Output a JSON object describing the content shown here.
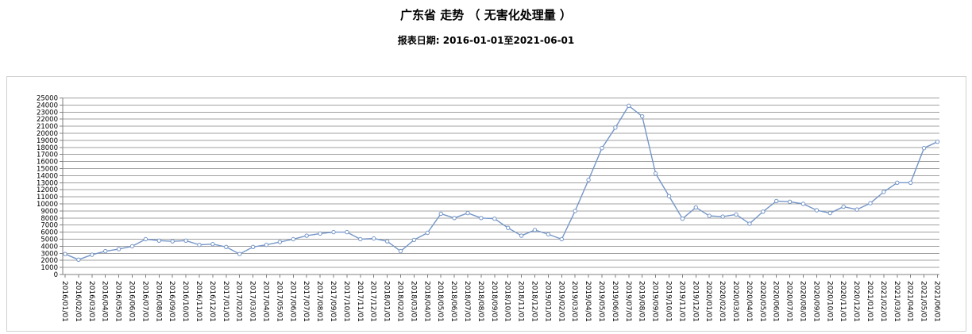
{
  "header": {
    "title": "广东省 走势 （ 无害化处理量 ）",
    "subtitle": "报表日期: 2016-01-01至2021-06-01"
  },
  "chart_data": {
    "type": "line",
    "title": "广东省 走势 （ 无害化处理量 ）",
    "subtitle": "报表日期: 2016-01-01至2021-06-01",
    "xlabel": "",
    "ylabel": "",
    "ylim": [
      0,
      25000
    ],
    "ytick_step": 1000,
    "yticks": [
      0,
      1000,
      2000,
      3000,
      4000,
      5000,
      6000,
      7000,
      8000,
      9000,
      10000,
      11000,
      12000,
      13000,
      14000,
      15000,
      16000,
      17000,
      18000,
      19000,
      20000,
      21000,
      22000,
      23000,
      24000,
      25000
    ],
    "grid": "horizontal",
    "legend_position": "none",
    "x_label_rotation_deg": 90,
    "categories": [
      "2016/01/01",
      "2016/02/01",
      "2016/03/01",
      "2016/04/01",
      "2016/05/01",
      "2016/06/01",
      "2016/07/01",
      "2016/08/01",
      "2016/09/01",
      "2016/10/01",
      "2016/11/01",
      "2016/12/01",
      "2017/01/01",
      "2017/02/01",
      "2017/03/01",
      "2017/04/01",
      "2017/05/01",
      "2017/06/01",
      "2017/07/01",
      "2017/08/01",
      "2017/09/01",
      "2017/10/01",
      "2017/11/01",
      "2017/12/01",
      "2018/01/01",
      "2018/02/01",
      "2018/03/01",
      "2018/04/01",
      "2018/05/01",
      "2018/06/01",
      "2018/07/01",
      "2018/08/01",
      "2018/09/01",
      "2018/10/01",
      "2018/11/01",
      "2018/12/01",
      "2019/01/01",
      "2019/02/01",
      "2019/03/01",
      "2019/04/01",
      "2019/05/01",
      "2019/06/01",
      "2019/07/01",
      "2019/08/01",
      "2019/09/01",
      "2019/10/01",
      "2019/11/01",
      "2019/12/01",
      "2020/01/01",
      "2020/02/01",
      "2020/03/01",
      "2020/04/01",
      "2020/05/01",
      "2020/06/01",
      "2020/07/01",
      "2020/08/01",
      "2020/09/01",
      "2020/10/01",
      "2020/11/01",
      "2020/12/01",
      "2021/01/01",
      "2021/02/01",
      "2021/03/01",
      "2021/04/01",
      "2021/05/01",
      "2021/06/01"
    ],
    "series": [
      {
        "name": "无害化处理量",
        "values": [
          2900,
          2100,
          2800,
          3300,
          3600,
          4000,
          5000,
          4800,
          4700,
          4800,
          4200,
          4300,
          3900,
          2900,
          3900,
          4200,
          4600,
          5000,
          5500,
          5800,
          6000,
          6000,
          5000,
          5100,
          4700,
          3300,
          4900,
          5900,
          8600,
          8000,
          8700,
          8000,
          7900,
          6600,
          5500,
          6300,
          5700,
          5000,
          9000,
          13400,
          17900,
          20800,
          23900,
          22400,
          14300,
          11100,
          7900,
          9500,
          8300,
          8200,
          8500,
          7200,
          8900,
          10400,
          10300,
          10000,
          9100,
          8700,
          9600,
          9200,
          10100,
          11700,
          13000,
          13000,
          17900,
          18800
        ]
      }
    ],
    "colors": {
      "line": "#7596c8",
      "marker_fill": "#ffffff",
      "marker_stroke": "#7596c8",
      "gridline": "#a0a0a0",
      "axis": "#808080",
      "tick_text": "#000000",
      "panel_border": "#d0d0d0"
    }
  }
}
